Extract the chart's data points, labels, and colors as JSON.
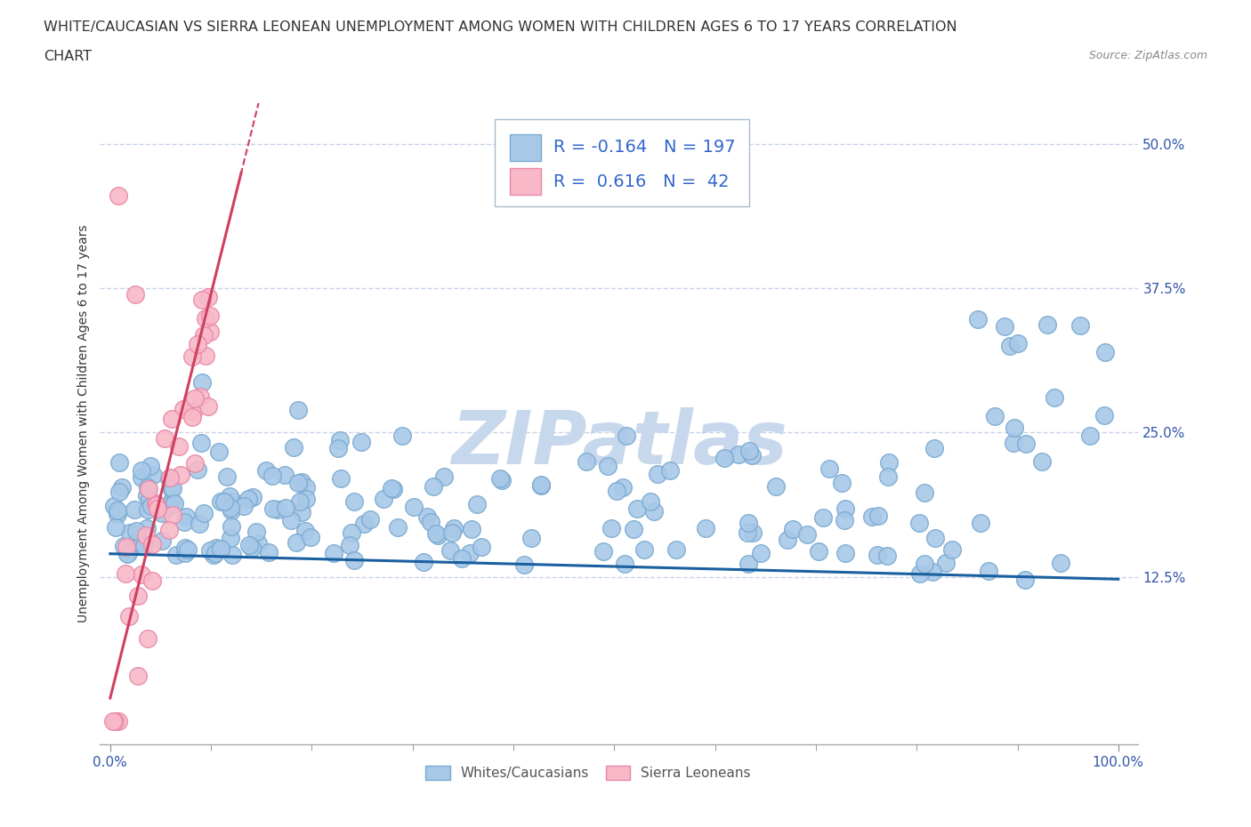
{
  "title_line1": "WHITE/CAUCASIAN VS SIERRA LEONEAN UNEMPLOYMENT AMONG WOMEN WITH CHILDREN AGES 6 TO 17 YEARS CORRELATION",
  "title_line2": "CHART",
  "source_text": "Source: ZipAtlas.com",
  "ylabel": "Unemployment Among Women with Children Ages 6 to 17 years",
  "ytick_labels": [
    "12.5%",
    "25.0%",
    "37.5%",
    "50.0%"
  ],
  "ytick_values": [
    0.125,
    0.25,
    0.375,
    0.5
  ],
  "xtick_minor_values": [
    0.0,
    0.1,
    0.2,
    0.3,
    0.4,
    0.5,
    0.6,
    0.7,
    0.8,
    0.9,
    1.0
  ],
  "xlim": [
    -0.01,
    1.02
  ],
  "ylim": [
    -0.02,
    0.535
  ],
  "blue_color": "#a8c8e8",
  "blue_edge_color": "#7aaad0",
  "pink_color": "#f8b8c8",
  "pink_edge_color": "#e888a8",
  "trend_blue_color": "#1a5fa0",
  "trend_pink_color": "#d04060",
  "grid_color": "#c8d4e8",
  "legend_blue_R": "-0.164",
  "legend_blue_N": "197",
  "legend_pink_R": "0.616",
  "legend_pink_N": "42",
  "watermark_color": "#c8d8ec",
  "background_color": "#ffffff",
  "title_fontsize": 11.5,
  "axis_label_fontsize": 10,
  "tick_fontsize": 11,
  "legend_fontsize": 14,
  "seed": 42
}
